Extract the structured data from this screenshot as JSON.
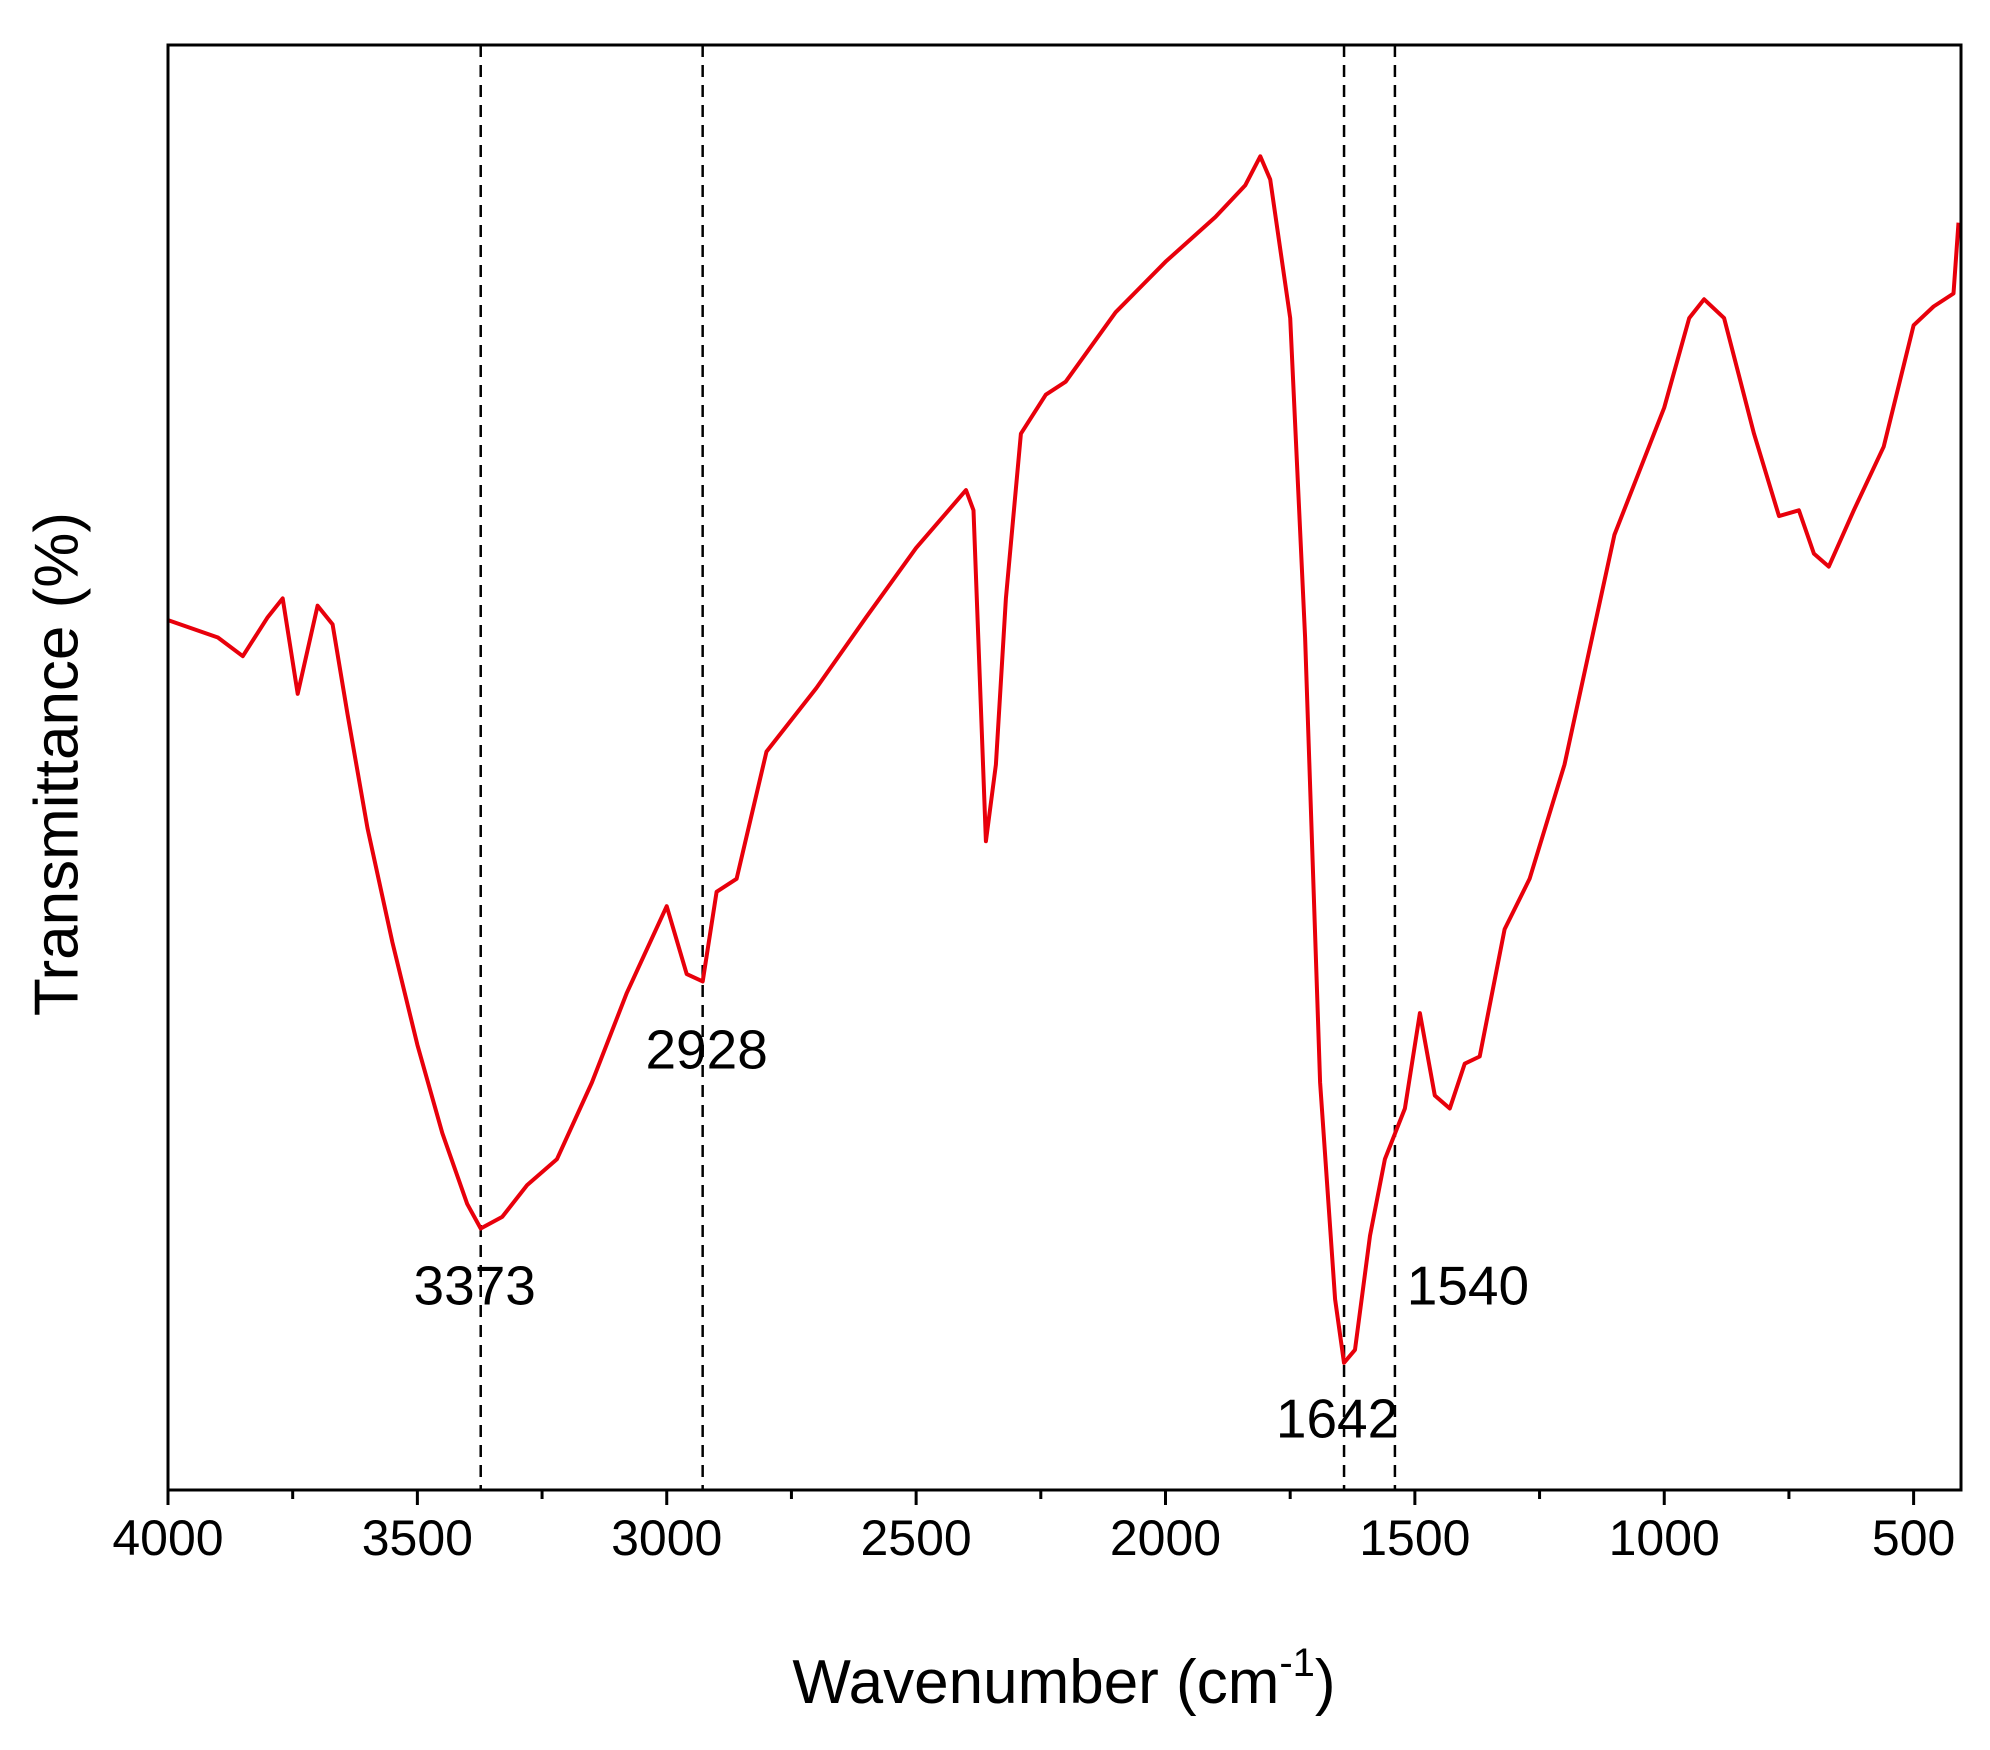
{
  "chart_data": {
    "type": "line",
    "xlabel": [
      "Wavenumber (cm",
      "-1",
      ")"
    ],
    "ylabel": "Transmittance (%)",
    "x": [
      4000,
      3900,
      3850,
      3800,
      3770,
      3740,
      3700,
      3670,
      3640,
      3600,
      3550,
      3500,
      3450,
      3400,
      3373,
      3330,
      3280,
      3220,
      3150,
      3080,
      3000,
      2960,
      2928,
      2900,
      2860,
      2800,
      2700,
      2600,
      2500,
      2400,
      2385,
      2360,
      2340,
      2320,
      2290,
      2240,
      2200,
      2100,
      2000,
      1900,
      1840,
      1810,
      1790,
      1750,
      1720,
      1690,
      1660,
      1642,
      1620,
      1590,
      1560,
      1520,
      1490,
      1460,
      1430,
      1400,
      1370,
      1320,
      1270,
      1200,
      1100,
      1050,
      1000,
      950,
      920,
      880,
      820,
      770,
      730,
      700,
      670,
      620,
      560,
      500,
      460,
      420,
      410
    ],
    "series": [
      {
        "name": "Transmittance",
        "color": "#e8000b",
        "values": [
          60.2,
          59.0,
          57.7,
          60.4,
          61.7,
          55.1,
          61.2,
          59.9,
          53.7,
          45.8,
          37.9,
          30.8,
          24.7,
          19.8,
          18.1,
          18.9,
          21.1,
          22.9,
          28.2,
          34.4,
          40.4,
          35.7,
          35.2,
          41.4,
          42.3,
          51.1,
          55.5,
          60.4,
          65.2,
          69.2,
          67.8,
          44.9,
          50.2,
          61.7,
          73.1,
          75.8,
          76.7,
          81.5,
          85.0,
          88.1,
          90.3,
          92.3,
          90.7,
          81.1,
          59.0,
          28.2,
          13.2,
          8.8,
          9.7,
          17.6,
          22.9,
          26.4,
          33.0,
          27.3,
          26.4,
          29.5,
          30.0,
          38.8,
          42.3,
          50.2,
          66.1,
          70.5,
          74.9,
          81.1,
          82.4,
          81.1,
          73.1,
          67.4,
          67.8,
          64.8,
          63.9,
          67.8,
          72.2,
          80.6,
          81.9,
          82.8,
          87.7
        ]
      }
    ],
    "annotations": [
      3373,
      2928,
      1642,
      1540
    ],
    "xlim": [
      4000,
      405
    ],
    "ylim": [
      0,
      100
    ],
    "xticks": [
      4000,
      3500,
      3000,
      2500,
      2000,
      1500,
      1000,
      500
    ],
    "xminorticks": [
      3750,
      3250,
      2750,
      2250,
      1750,
      1250,
      750
    ],
    "grid": false
  }
}
